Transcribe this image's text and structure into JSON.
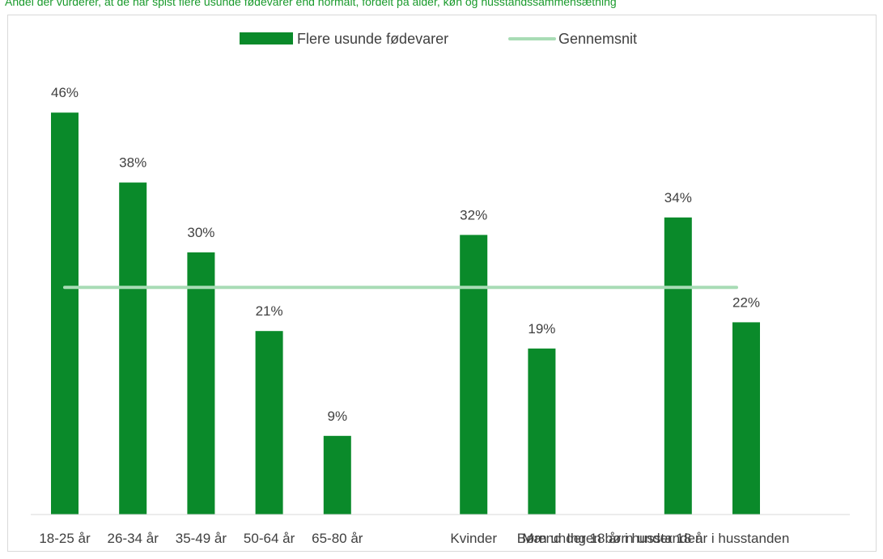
{
  "colors": {
    "bar": "#0a8a2a",
    "average_line": "#a8dcb5",
    "title": "#1a9a2c",
    "axis": "#d9d9d9"
  },
  "chart_data": {
    "type": "bar",
    "title": "Andel der vurderer, at de har spist flere usunde fødevarer end normalt, fordelt på alder, køn og husstandssammensætning",
    "categories": [
      "18-25 år",
      "26-34 år",
      "35-49 år",
      "50-64 år",
      "65-80 år",
      "",
      "Kvinder",
      "Mænd",
      "Børn under 18 år i husstanden",
      "Ingen børn under 18 år i husstanden",
      ""
    ],
    "series": [
      {
        "name": "Flere usunde fødevarer",
        "values": [
          46,
          38,
          30,
          21,
          9,
          null,
          32,
          19,
          null,
          34,
          22
        ]
      }
    ],
    "data_labels": [
      "46%",
      "38%",
      "30%",
      "21%",
      "9%",
      "",
      "32%",
      "19%",
      "",
      "34%",
      "22%"
    ],
    "average": {
      "name": "Gennemsnit",
      "value": 26
    },
    "ylim": [
      0,
      50
    ],
    "legend": "top-center",
    "grid": false
  }
}
